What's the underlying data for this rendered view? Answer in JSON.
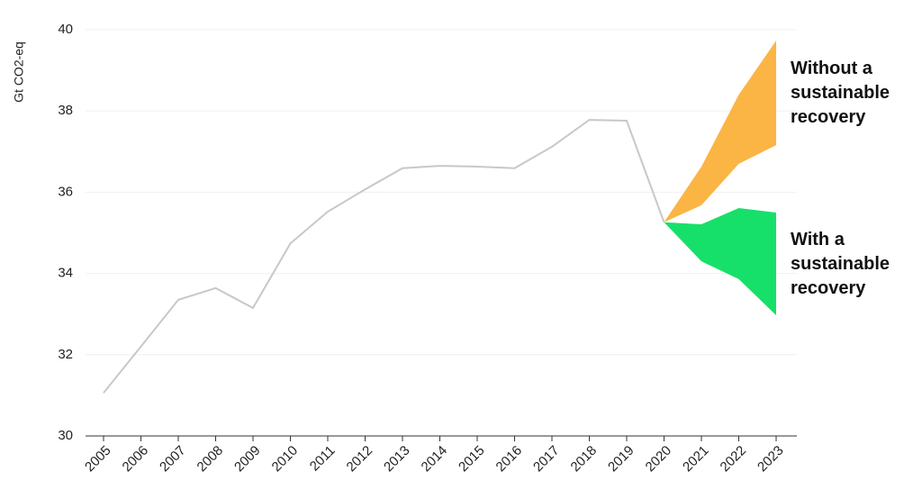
{
  "chart_data": {
    "type": "line",
    "y_label": "Gt CO2-eq",
    "categories": [
      "2005",
      "2006",
      "2007",
      "2008",
      "2009",
      "2010",
      "2011",
      "2012",
      "2013",
      "2014",
      "2015",
      "2016",
      "2017",
      "2018",
      "2019",
      "2020",
      "2021",
      "2022",
      "2023"
    ],
    "values": [
      31.06,
      32.2,
      33.35,
      33.64,
      33.15,
      34.74,
      35.52,
      36.07,
      36.59,
      36.65,
      36.63,
      36.59,
      37.12,
      37.78,
      37.76,
      35.26,
      null,
      null,
      null
    ],
    "color": "#c8c8c8",
    "bands": [
      {
        "name": "Without a sustainable recovery",
        "color": "#fbb545",
        "upper": [
          null,
          null,
          null,
          null,
          null,
          null,
          null,
          null,
          null,
          null,
          null,
          null,
          null,
          null,
          null,
          35.26,
          36.63,
          38.4,
          39.73
        ],
        "lower": [
          null,
          null,
          null,
          null,
          null,
          null,
          null,
          null,
          null,
          null,
          null,
          null,
          null,
          null,
          null,
          35.26,
          35.68,
          36.7,
          37.16
        ]
      },
      {
        "name": "With a sustainable recovery",
        "color": "#16e06a",
        "upper": [
          null,
          null,
          null,
          null,
          null,
          null,
          null,
          null,
          null,
          null,
          null,
          null,
          null,
          null,
          null,
          35.26,
          35.21,
          35.61,
          35.5
        ],
        "lower": [
          null,
          null,
          null,
          null,
          null,
          null,
          null,
          null,
          null,
          null,
          null,
          null,
          null,
          null,
          null,
          35.26,
          34.3,
          33.86,
          32.97
        ]
      }
    ],
    "ylim": [
      30,
      40
    ],
    "yticks": [
      30,
      32,
      34,
      36,
      38,
      40
    ],
    "grid": true
  }
}
